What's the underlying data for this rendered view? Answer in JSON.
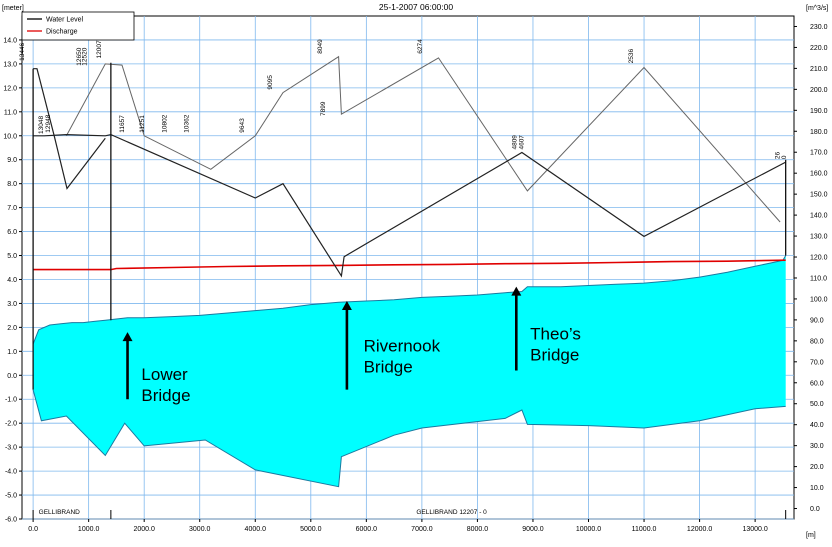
{
  "chart_data": {
    "type": "line",
    "title": "25-1-2007 06:00:00",
    "left_axis_label": "[meter]",
    "right_axis_label": "[m^3/s]",
    "x_axis_label": "[m]",
    "x_range": [
      -200,
      13700
    ],
    "x_ticks": [
      0,
      1000,
      2000,
      3000,
      4000,
      5000,
      6000,
      7000,
      8000,
      9000,
      10000,
      11000,
      12000,
      13000
    ],
    "x_tick_labels": [
      "0.0",
      "1000.0",
      "2000.0",
      "3000.0",
      "4000.0",
      "5000.0",
      "6000.0",
      "7000.0",
      "8000.0",
      "9000.0",
      "10000.0",
      "11000.0",
      "12000.0",
      "13000.0"
    ],
    "y_left_range": [
      -6,
      15
    ],
    "y_left_ticks": [
      -6,
      -5,
      -4,
      -3,
      -2,
      -1,
      0,
      1,
      2,
      3,
      4,
      5,
      6,
      7,
      8,
      9,
      10,
      11,
      12,
      13,
      14
    ],
    "y_left_tick_labels": [
      "-6.0",
      "-5.0",
      "-4.0",
      "-3.0",
      "-2.0",
      "-1.0",
      "0.0",
      "1.0",
      "2.0",
      "3.0",
      "4.0",
      "5.0",
      "6.0",
      "7.0",
      "8.0",
      "9.0",
      "10.0",
      "11.0",
      "12.0",
      "13.0",
      "14.0"
    ],
    "y_right_range": [
      -5,
      235
    ],
    "y_right_ticks": [
      0,
      10,
      20,
      30,
      40,
      50,
      60,
      70,
      80,
      90,
      100,
      110,
      120,
      130,
      140,
      150,
      160,
      170,
      180,
      190,
      200,
      210,
      220,
      230
    ],
    "y_right_tick_labels": [
      "0.0",
      "10.0",
      "20.0",
      "30.0",
      "40.0",
      "50.0",
      "60.0",
      "70.0",
      "80.0",
      "90.0",
      "100.0",
      "110.0",
      "120.0",
      "130.0",
      "140.0",
      "150.0",
      "160.0",
      "170.0",
      "180.0",
      "190.0",
      "200.0",
      "210.0",
      "220.0",
      "230.0"
    ],
    "grid": true,
    "legend_position": "top-left",
    "legend": [
      {
        "label": "Water Level",
        "color": "#000000"
      },
      {
        "label": "Discharge",
        "color": "#e00000"
      }
    ],
    "water_fill_color": "#00ffff",
    "branch_labels": [
      {
        "text": "GELLIBRAND",
        "x": 100
      },
      {
        "text": "GELLIBRAND 12207 - 0",
        "x": 6900
      }
    ],
    "water_surface": {
      "x": [
        0,
        100,
        300,
        500,
        700,
        900,
        1100,
        1300,
        1500,
        1700,
        2000,
        2500,
        3000,
        3500,
        4000,
        4500,
        5000,
        5500,
        6000,
        6500,
        7000,
        7500,
        8000,
        8500,
        8800,
        8900,
        9500,
        10000,
        10500,
        11000,
        11500,
        12000,
        12500,
        13000,
        13300,
        13500,
        13550
      ],
      "y": [
        1.3,
        1.9,
        2.1,
        2.15,
        2.2,
        2.2,
        2.25,
        2.3,
        2.35,
        2.4,
        2.4,
        2.45,
        2.5,
        2.6,
        2.7,
        2.8,
        2.95,
        3.05,
        3.1,
        3.15,
        3.25,
        3.3,
        3.35,
        3.45,
        3.5,
        3.7,
        3.7,
        3.75,
        3.8,
        3.85,
        3.95,
        4.1,
        4.3,
        4.55,
        4.7,
        4.8,
        5.0
      ]
    },
    "bed_level": {
      "x": [
        0,
        150,
        600,
        1300,
        1650,
        2000,
        3100,
        4000,
        5500,
        5550,
        6500,
        7000,
        8500,
        8800,
        8900,
        10000,
        11000,
        12000,
        13000,
        13550
      ],
      "y": [
        -0.6,
        -1.9,
        -1.7,
        -3.35,
        -2.0,
        -2.95,
        -2.7,
        -3.95,
        -4.65,
        -3.4,
        -2.5,
        -2.2,
        -1.8,
        -1.45,
        -2.05,
        -2.1,
        -2.2,
        -1.9,
        -1.4,
        -1.3
      ]
    },
    "discharge": {
      "x": [
        0,
        1400,
        1500,
        2500,
        3500,
        4500,
        5500,
        6500,
        7500,
        8500,
        9500,
        10500,
        11500,
        12500,
        13550
      ],
      "y": [
        114,
        114,
        114.5,
        115,
        115.5,
        115.8,
        116,
        116.3,
        116.5,
        116.8,
        117,
        117.4,
        117.8,
        118,
        118.5
      ]
    },
    "profile_dark": {
      "x": [
        0,
        200,
        600,
        1300,
        1400,
        4000,
        4500,
        5550,
        5600,
        8800,
        11000,
        13550
      ],
      "y": [
        10.0,
        10.0,
        10.05,
        10.0,
        10.05,
        7.4,
        8.0,
        4.15,
        4.95,
        9.3,
        5.8,
        8.9
      ]
    },
    "profile_grey": {
      "x": [
        600,
        1300,
        1600,
        2000,
        3200,
        4000,
        4500,
        5500,
        5550,
        7300,
        8900,
        11000,
        13450
      ],
      "y": [
        10.0,
        13.0,
        12.95,
        10.0,
        8.6,
        10.0,
        11.8,
        13.3,
        10.9,
        13.25,
        7.7,
        12.85,
        6.4
      ]
    },
    "left_bank": {
      "x": [
        0,
        70,
        380,
        610,
        1300
      ],
      "y": [
        12.8,
        12.8,
        10.0,
        7.8,
        9.9
      ]
    },
    "structures": [
      {
        "x": 0,
        "top": 12.8,
        "bottom": -0.6
      },
      {
        "x": 1400,
        "top": 13.05,
        "bottom": 2.3
      },
      {
        "x": 13550,
        "top": 9.0,
        "bottom": 5.0
      }
    ],
    "chainage_labels": [
      {
        "text": "13446",
        "x": -160,
        "y": 13.0
      },
      {
        "text": "13048",
        "x": 180,
        "y": 9.95
      },
      {
        "text": "12948",
        "x": 300,
        "y": 10.0
      },
      {
        "text": "12650",
        "x": 860,
        "y": 12.8
      },
      {
        "text": "12520",
        "x": 960,
        "y": 12.8
      },
      {
        "text": "12007",
        "x": 1220,
        "y": 13.1
      },
      {
        "text": "11657",
        "x": 1640,
        "y": 10.0
      },
      {
        "text": "11251",
        "x": 2000,
        "y": 10.0
      },
      {
        "text": "10802",
        "x": 2400,
        "y": 10.0
      },
      {
        "text": "10362",
        "x": 2800,
        "y": 10.0
      },
      {
        "text": "9643",
        "x": 3800,
        "y": 10.0
      },
      {
        "text": "9095",
        "x": 4300,
        "y": 11.8
      },
      {
        "text": "8049",
        "x": 5200,
        "y": 13.3
      },
      {
        "text": "7899",
        "x": 5260,
        "y": 10.7
      },
      {
        "text": "6274",
        "x": 7000,
        "y": 13.3
      },
      {
        "text": "4809",
        "x": 8700,
        "y": 9.3
      },
      {
        "text": "4607",
        "x": 8830,
        "y": 9.3
      },
      {
        "text": "2536",
        "x": 10800,
        "y": 12.9
      },
      {
        "text": "26",
        "x": 13440,
        "y": 8.9
      },
      {
        "text": "0",
        "x": 13560,
        "y": 8.9
      }
    ],
    "annotations": [
      {
        "lines": [
          "Lower",
          "Bridge"
        ],
        "arrow_x": 1700,
        "arrow_top": 1.8,
        "arrow_bottom": -1.0,
        "text_x": 1950,
        "text_y": -0.2
      },
      {
        "lines": [
          "Rivernook",
          "Bridge"
        ],
        "arrow_x": 5650,
        "arrow_top": 3.1,
        "arrow_bottom": -0.6,
        "text_x": 5950,
        "text_y": 1.0
      },
      {
        "lines": [
          "Theo’s",
          "Bridge"
        ],
        "arrow_x": 8700,
        "arrow_top": 3.7,
        "arrow_bottom": 0.2,
        "text_x": 8950,
        "text_y": 1.5
      }
    ]
  }
}
